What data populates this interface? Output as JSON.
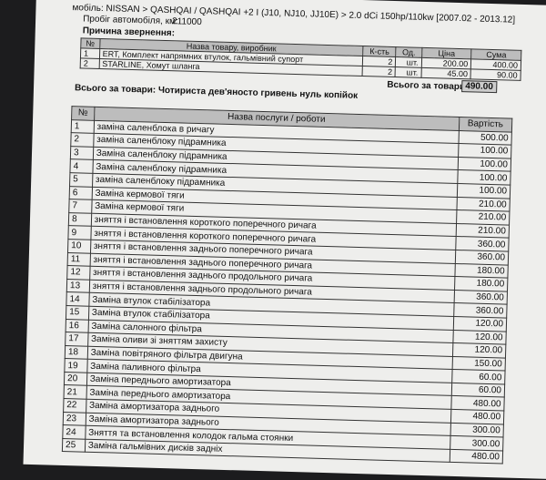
{
  "header": {
    "vehicle": "мобіль: NISSAN > QASHQAI / QASHQAI +2 I (J10, NJ10, JJ10E) > 2.0 dCi 150hp/110kw [2007.02 - 2013.12]",
    "mileage_label": "Пробіг автомобіля, км:",
    "mileage": "211000",
    "reason_label": "Причина звернення:"
  },
  "goods": {
    "columns": [
      "№",
      "Назва товару, виробник",
      "К-сть",
      "Од.",
      "Ціна",
      "Сума"
    ],
    "rows": [
      [
        "1",
        "ERT, Комплект напрямних втулок, гальмівний супорт",
        "2",
        "шт.",
        "200.00",
        "400.00"
      ],
      [
        "2",
        "STARLINE, Хомут шланга",
        "2",
        "шт.",
        "45.00",
        "90.00"
      ]
    ],
    "total_label": "Всього за товари:",
    "total": "490.00",
    "total_words": "Всього за товари:  Чотириста дев'яносто гривень нуль копійок"
  },
  "services": {
    "columns": [
      "№",
      "Назва послуги / роботи",
      "Вартість"
    ],
    "rows": [
      [
        "1",
        "заміна саленблока в ричагу",
        "500.00"
      ],
      [
        "2",
        "заміна саленблоку підрамника",
        "100.00"
      ],
      [
        "3",
        "Заміна саленблоку підрамника",
        "100.00"
      ],
      [
        "4",
        "Заміна саленблоку підрамника",
        "100.00"
      ],
      [
        "5",
        "заміна саленблоку підрамника",
        "100.00"
      ],
      [
        "6",
        "Заміна кермової тяги",
        "210.00"
      ],
      [
        "7",
        "Заміна кермової тяги",
        "210.00"
      ],
      [
        "8",
        "зняття і встановлення короткого поперечного ричага",
        "210.00"
      ],
      [
        "9",
        "зняття і встановлення короткого поперечного ричага",
        "360.00"
      ],
      [
        "10",
        "зняття і встановлення заднього поперечного ричага",
        "360.00"
      ],
      [
        "11",
        "зняття і встановлення заднього поперечного ричага",
        "180.00"
      ],
      [
        "12",
        "зняття і встановлення заднього продольного ричага",
        "180.00"
      ],
      [
        "13",
        "зняття і встановлення заднього продольного ричага",
        "360.00"
      ],
      [
        "14",
        "Заміна втулок стабілізатора",
        "360.00"
      ],
      [
        "15",
        "Заміна втулок стабілізатора",
        "120.00"
      ],
      [
        "16",
        "Заміна салонного фільтра",
        "120.00"
      ],
      [
        "17",
        "Заміна оливи зі зняттям захисту",
        "120.00"
      ],
      [
        "18",
        "Заміна повітряного фільтра двигуна",
        "150.00"
      ],
      [
        "19",
        "Заміна паливного фільтра",
        "60.00"
      ],
      [
        "20",
        "Заміна переднього амортизатора",
        "60.00"
      ],
      [
        "21",
        "Заміна переднього амортизатора",
        "480.00"
      ],
      [
        "22",
        "Заміна амортизатора заднього",
        "480.00"
      ],
      [
        "23",
        "Заміна амортизатора заднього",
        "300.00"
      ],
      [
        "24",
        "Зняття та встановлення колодок гальма стоянки",
        "300.00"
      ],
      [
        "25",
        "Заміна гальмівних дисків задніх",
        "480.00"
      ]
    ]
  }
}
